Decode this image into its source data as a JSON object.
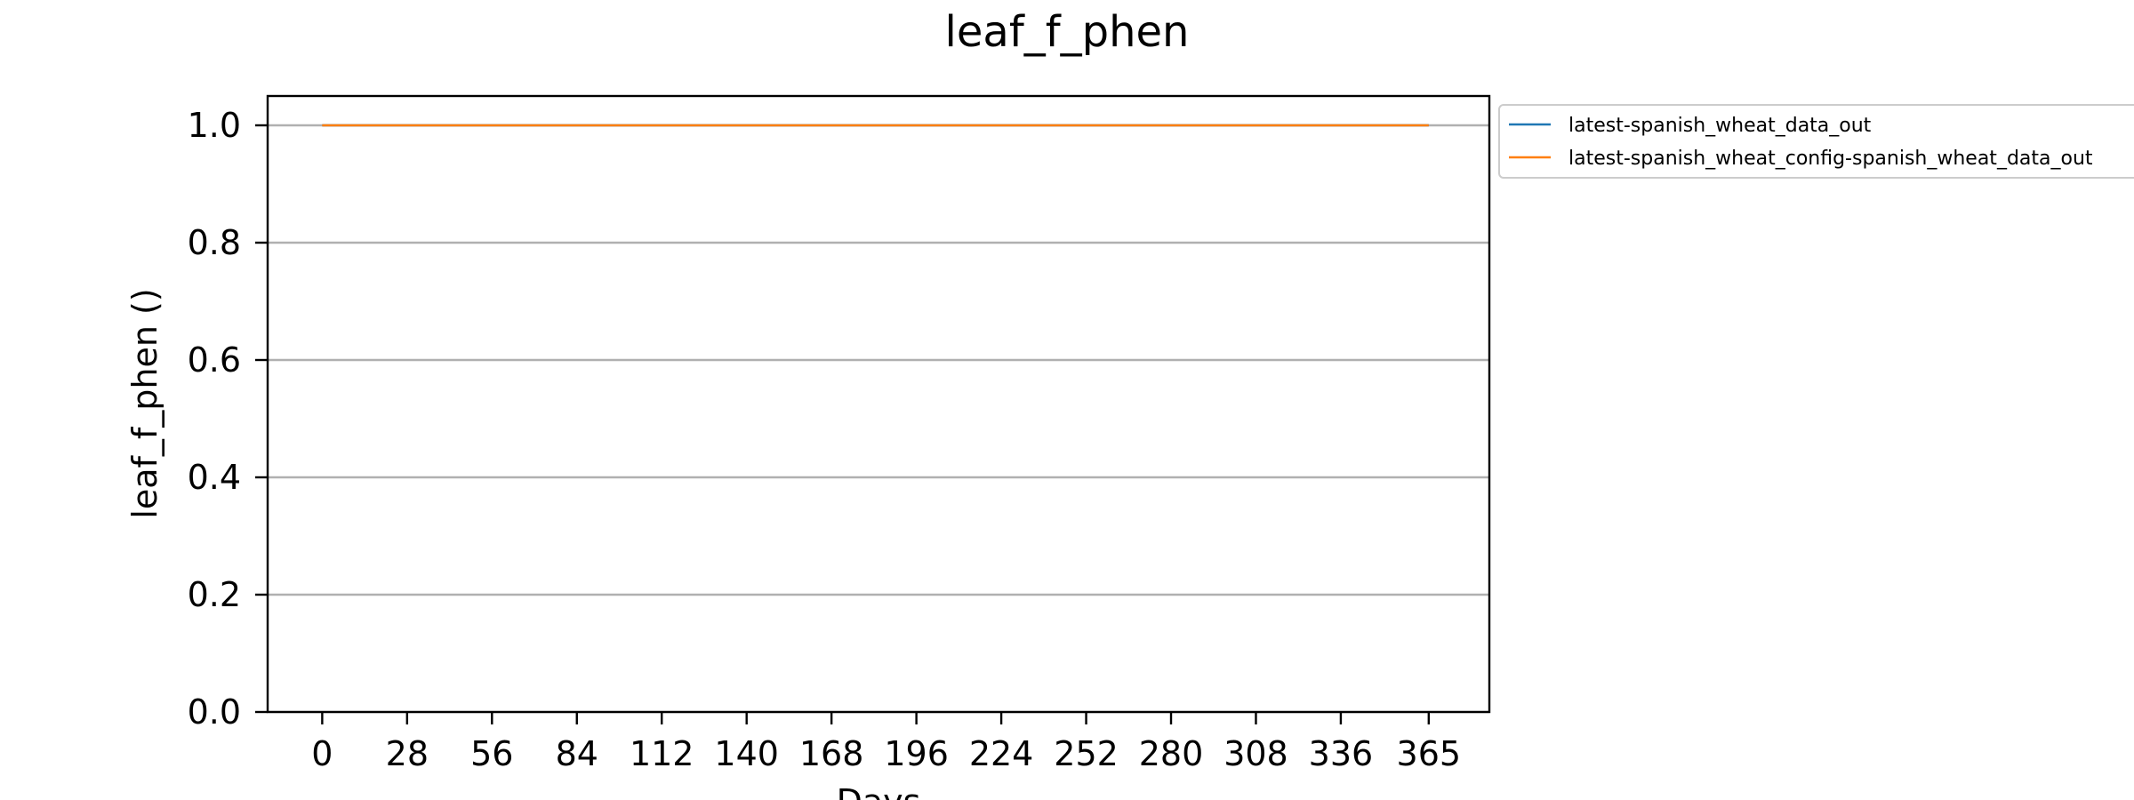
{
  "chart_data": {
    "type": "line",
    "title": "leaf_f_phen",
    "xlabel": "Days",
    "ylabel": "leaf_f_phen ()",
    "x_ticks": [
      0,
      28,
      56,
      84,
      112,
      140,
      168,
      196,
      224,
      252,
      280,
      308,
      336,
      365
    ],
    "y_ticks": [
      "0.0",
      "0.2",
      "0.4",
      "0.6",
      "0.8",
      "1.0"
    ],
    "xlim": [
      -18,
      385
    ],
    "ylim": [
      0,
      1.05
    ],
    "grid": "horizontal",
    "legend_position": "outside-right",
    "series": [
      {
        "name": "latest-spanish_wheat_data_out",
        "color": "#1f77b4",
        "x": [
          0,
          365
        ],
        "y": [
          1.0,
          1.0
        ]
      },
      {
        "name": "latest-spanish_wheat_config-spanish_wheat_data_out",
        "color": "#ff7f0e",
        "x": [
          0,
          365
        ],
        "y": [
          1.0,
          1.0
        ]
      }
    ]
  }
}
